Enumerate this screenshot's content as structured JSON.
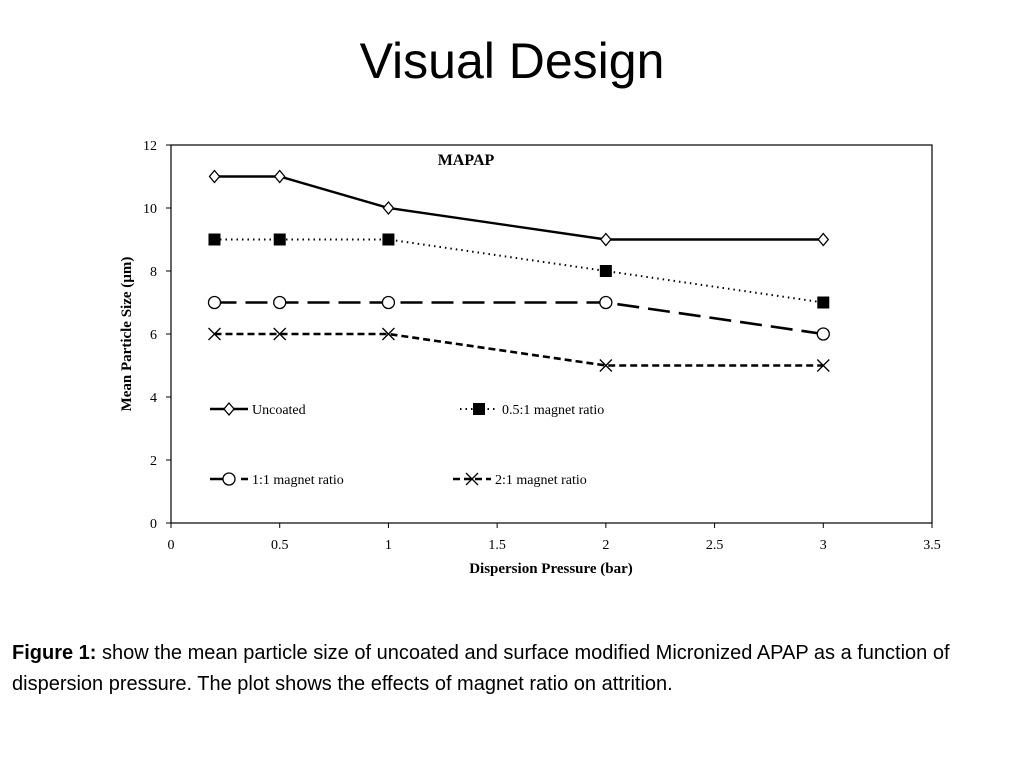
{
  "slide": {
    "title": "Visual Design"
  },
  "chart_data": {
    "type": "line",
    "title": "MAPAP",
    "xlabel": "Dispersion Pressure (bar)",
    "ylabel": "Mean Particle Size (µm)",
    "xlim": [
      0,
      3.5
    ],
    "ylim": [
      0,
      12
    ],
    "xticks": [
      "0",
      "0.5",
      "1",
      "1.5",
      "2",
      "2.5",
      "3",
      "3.5"
    ],
    "yticks": [
      "0",
      "2",
      "4",
      "6",
      "8",
      "10",
      "12"
    ],
    "grid": false,
    "legend_placement": "inside-middle",
    "x": [
      0.2,
      0.5,
      1,
      2,
      3
    ],
    "series": [
      {
        "name": "Uncoated",
        "values": [
          11,
          11,
          10,
          9,
          9
        ],
        "line": "solid",
        "marker": "diamond-open"
      },
      {
        "name": "0.5:1 magnet ratio",
        "values": [
          9,
          9,
          9,
          8,
          7
        ],
        "line": "dotted",
        "marker": "square-filled"
      },
      {
        "name": "1:1 magnet ratio",
        "values": [
          7,
          7,
          7,
          7,
          6
        ],
        "line": "long-dash",
        "marker": "circle-open"
      },
      {
        "name": "2:1 magnet ratio",
        "values": [
          6,
          6,
          6,
          5,
          5
        ],
        "line": "short-dash",
        "marker": "x"
      }
    ]
  },
  "caption": {
    "label": "Figure 1:",
    "text": " show the mean particle size of uncoated and surface modified Micronized APAP as a function of dispersion pressure. The plot shows the effects of magnet ratio on attrition."
  }
}
